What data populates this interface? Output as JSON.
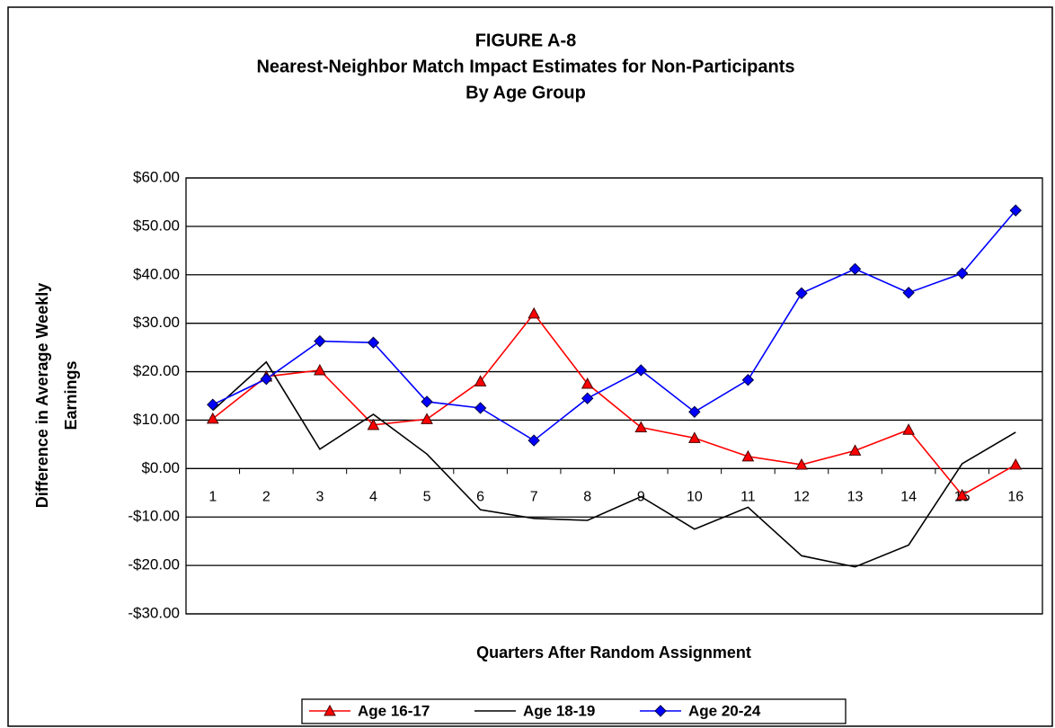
{
  "chart_data": {
    "type": "line",
    "title": [
      "FIGURE A-8",
      "Nearest-Neighbor Match Impact Estimates for Non-Participants",
      "By Age Group"
    ],
    "xlabel": "Quarters After Random Assignment",
    "ylabel": [
      "Difference in Average Weekly",
      "Earnings"
    ],
    "categories": [
      "1",
      "2",
      "3",
      "4",
      "5",
      "6",
      "7",
      "8",
      "9",
      "10",
      "11",
      "12",
      "13",
      "14",
      "15",
      "16"
    ],
    "series": [
      {
        "name": "Age 16-17",
        "color": "#ff0000",
        "marker": "triangle",
        "values": [
          10.3,
          19,
          20.3,
          9,
          10.2,
          18,
          32,
          17.5,
          8.5,
          6.3,
          2.5,
          0.8,
          3.7,
          8,
          -5.5,
          0.8
        ]
      },
      {
        "name": "Age 18-19",
        "color": "#000000",
        "marker": "none",
        "values": [
          12,
          22,
          4,
          11.2,
          3,
          -8.5,
          -10.3,
          -10.7,
          -5.8,
          -12.5,
          -8,
          -18,
          -20.3,
          -15.8,
          1,
          7.5
        ]
      },
      {
        "name": "Age 20-24",
        "color": "#0000ff",
        "marker": "diamond",
        "values": [
          13.2,
          18.5,
          26.3,
          26,
          13.8,
          12.5,
          5.8,
          14.5,
          20.3,
          11.7,
          18.3,
          36.2,
          41.2,
          36.3,
          40.3,
          53.3
        ]
      }
    ],
    "ylim": [
      -30,
      60
    ],
    "yticks": [
      {
        "value": -30,
        "label": "-$30.00"
      },
      {
        "value": -20,
        "label": "-$20.00"
      },
      {
        "value": -10,
        "label": "-$10.00"
      },
      {
        "value": 0,
        "label": "$0.00"
      },
      {
        "value": 10,
        "label": "$10.00"
      },
      {
        "value": 20,
        "label": "$20.00"
      },
      {
        "value": 30,
        "label": "$30.00"
      },
      {
        "value": 40,
        "label": "$40.00"
      },
      {
        "value": 50,
        "label": "$50.00"
      },
      {
        "value": 60,
        "label": "$60.00"
      }
    ],
    "grid": true,
    "legend": "bottom"
  }
}
